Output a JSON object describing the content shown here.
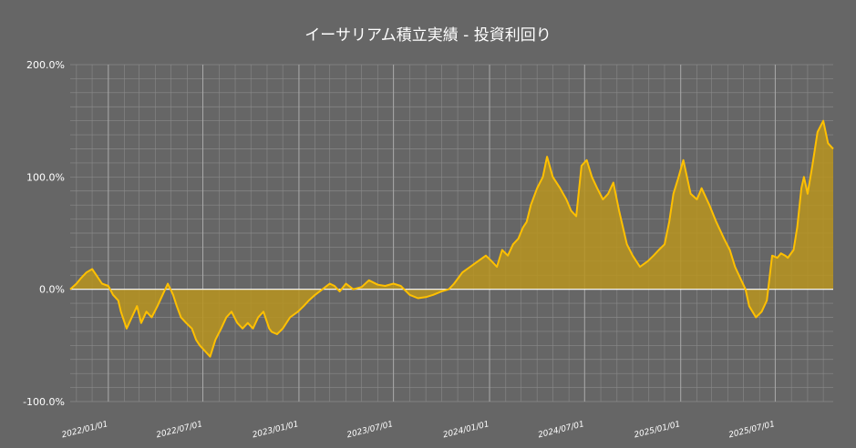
{
  "chart_data": {
    "type": "area",
    "title": "イーサリアム積立実績 ‐ 投資利回り",
    "xlabel": "",
    "ylabel": "",
    "ylim": [
      -100,
      200
    ],
    "ytick_labels": [
      "200.0%",
      "100.0%",
      "0.0%",
      "-100.0%"
    ],
    "yticks": [
      200,
      100,
      0,
      -100
    ],
    "xlim": [
      "2021-10-20",
      "2025-10-20"
    ],
    "xtick_labels": [
      "2022/01/01",
      "2022/07/01",
      "2023/01/01",
      "2023/07/01",
      "2024/01/01",
      "2024/07/01",
      "2025/01/01",
      "2025/07/01"
    ],
    "xticks": [
      "2022-01-01",
      "2022-07-01",
      "2023-01-01",
      "2023-07-01",
      "2024-01-01",
      "2024-07-01",
      "2025-01-01",
      "2025-07-01"
    ],
    "grid": true,
    "colors": {
      "background": "#666666",
      "line": "#ffc000",
      "fill": "#b8941e",
      "grid": "#8a8a8a",
      "zero": "#ffffff"
    },
    "series": [
      {
        "x": [
          "2021-10-20",
          "2021-11-01",
          "2021-11-10",
          "2021-11-20",
          "2021-12-01",
          "2021-12-10",
          "2021-12-20",
          "2022-01-01",
          "2022-01-10",
          "2022-01-20",
          "2022-01-25",
          "2022-02-05",
          "2022-02-15",
          "2022-02-25",
          "2022-03-05",
          "2022-03-15",
          "2022-03-25",
          "2022-04-05",
          "2022-04-15",
          "2022-04-25",
          "2022-05-05",
          "2022-05-12",
          "2022-05-20",
          "2022-05-30",
          "2022-06-10",
          "2022-06-18",
          "2022-06-25",
          "2022-07-05",
          "2022-07-15",
          "2022-07-25",
          "2022-08-05",
          "2022-08-15",
          "2022-08-25",
          "2022-09-05",
          "2022-09-15",
          "2022-09-25",
          "2022-10-05",
          "2022-10-15",
          "2022-10-25",
          "2022-11-05",
          "2022-11-10",
          "2022-11-20",
          "2022-12-01",
          "2022-12-15",
          "2022-12-30",
          "2023-01-10",
          "2023-01-20",
          "2023-02-01",
          "2023-02-15",
          "2023-03-01",
          "2023-03-10",
          "2023-03-20",
          "2023-04-01",
          "2023-04-15",
          "2023-05-01",
          "2023-05-15",
          "2023-06-01",
          "2023-06-15",
          "2023-07-01",
          "2023-07-15",
          "2023-08-01",
          "2023-08-17",
          "2023-09-01",
          "2023-09-15",
          "2023-10-01",
          "2023-10-15",
          "2023-10-25",
          "2023-11-10",
          "2023-11-25",
          "2023-12-10",
          "2023-12-25",
          "2024-01-05",
          "2024-01-15",
          "2024-01-25",
          "2024-02-05",
          "2024-02-15",
          "2024-02-25",
          "2024-03-05",
          "2024-03-12",
          "2024-03-20",
          "2024-04-01",
          "2024-04-12",
          "2024-04-20",
          "2024-05-01",
          "2024-05-15",
          "2024-05-21",
          "2024-05-27",
          "2024-06-05",
          "2024-06-15",
          "2024-06-25",
          "2024-07-05",
          "2024-07-15",
          "2024-07-25",
          "2024-08-05",
          "2024-08-15",
          "2024-08-25",
          "2024-09-05",
          "2024-09-20",
          "2024-10-01",
          "2024-10-15",
          "2024-10-30",
          "2024-11-10",
          "2024-11-20",
          "2024-12-01",
          "2024-12-10",
          "2024-12-18",
          "2024-12-28",
          "2025-01-06",
          "2025-01-20",
          "2025-02-01",
          "2025-02-10",
          "2025-02-25",
          "2025-03-10",
          "2025-03-25",
          "2025-04-05",
          "2025-04-15",
          "2025-04-25",
          "2025-05-05",
          "2025-05-12",
          "2025-05-25",
          "2025-06-05",
          "2025-06-15",
          "2025-06-25",
          "2025-07-05",
          "2025-07-12",
          "2025-07-20",
          "2025-07-25",
          "2025-08-05",
          "2025-08-12",
          "2025-08-20",
          "2025-08-25",
          "2025-09-01",
          "2025-09-10",
          "2025-09-20",
          "2025-10-01",
          "2025-10-10",
          "2025-10-20"
        ],
        "values": [
          0,
          5,
          10,
          15,
          18,
          12,
          5,
          3,
          -5,
          -10,
          -20,
          -35,
          -25,
          -15,
          -30,
          -20,
          -25,
          -15,
          -5,
          5,
          -5,
          -15,
          -25,
          -30,
          -35,
          -45,
          -50,
          -55,
          -60,
          -45,
          -35,
          -25,
          -20,
          -30,
          -35,
          -30,
          -35,
          -25,
          -20,
          -35,
          -38,
          -40,
          -35,
          -25,
          -20,
          -15,
          -10,
          -5,
          0,
          5,
          3,
          -2,
          5,
          0,
          2,
          8,
          4,
          3,
          5,
          3,
          -5,
          -8,
          -7,
          -5,
          -2,
          0,
          5,
          15,
          20,
          25,
          30,
          25,
          20,
          35,
          30,
          40,
          45,
          55,
          60,
          75,
          90,
          100,
          118,
          100,
          90,
          85,
          80,
          70,
          65,
          110,
          115,
          100,
          90,
          80,
          85,
          95,
          70,
          40,
          30,
          20,
          25,
          30,
          35,
          40,
          60,
          85,
          100,
          115,
          85,
          80,
          90,
          75,
          60,
          45,
          35,
          20,
          10,
          0,
          -15,
          -25,
          -20,
          -10,
          30,
          28,
          32,
          30,
          28,
          35,
          55,
          90,
          100,
          85,
          110,
          140,
          150,
          130,
          125
        ]
      }
    ]
  }
}
